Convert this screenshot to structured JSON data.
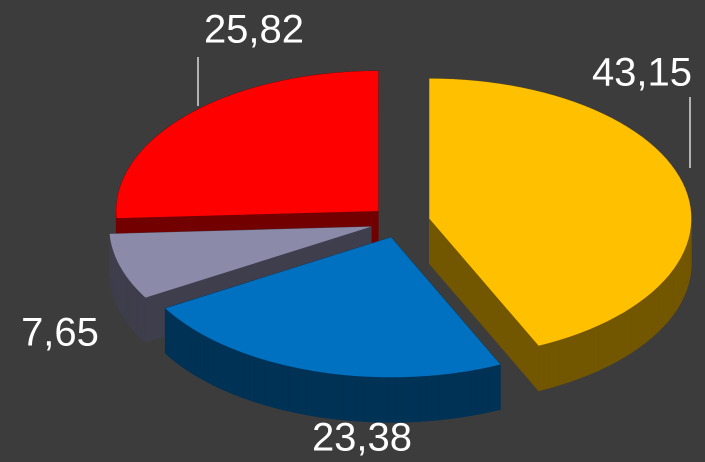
{
  "chart_data": {
    "type": "pie",
    "values": [
      43.15,
      23.38,
      7.65,
      25.82
    ],
    "value_labels": [
      "43,15",
      "23,38",
      "7,65",
      "25,82"
    ],
    "colors": [
      "#ffc000",
      "#0070c0",
      "#8b8aa8",
      "#ff0000"
    ]
  }
}
